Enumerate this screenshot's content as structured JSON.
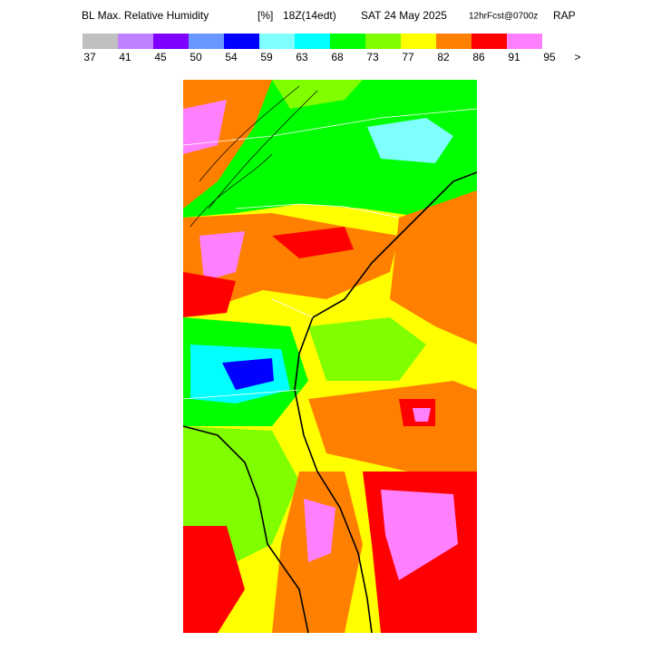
{
  "header": {
    "title": "BL Max. Relative Humidity",
    "unit": "[%]",
    "time": "18Z(14edt)",
    "date": "SAT 24 May 2025",
    "forecast": "12hrFcst@0700z",
    "model": "RAP"
  },
  "legend": {
    "colors": [
      "#c0c0c0",
      "#c080ff",
      "#8000ff",
      "#6a96ff",
      "#0000ff",
      "#80ffff",
      "#00ffff",
      "#00ff00",
      "#80ff00",
      "#ffff00",
      "#ff8000",
      "#ff0000",
      "#ff80ff"
    ],
    "labels": [
      "37",
      "41",
      "45",
      "50",
      "54",
      "59",
      "63",
      "68",
      "73",
      "77",
      "82",
      "86",
      "91",
      "95",
      ">"
    ]
  }
}
